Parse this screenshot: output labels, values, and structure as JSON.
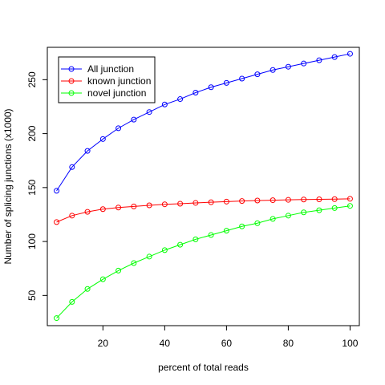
{
  "chart_data": {
    "type": "line",
    "title": "",
    "xlabel": "percent of total reads",
    "ylabel": "Number of splicing junctions (x1000)",
    "xlim": [
      2,
      103
    ],
    "ylim": [
      22,
      280
    ],
    "xticks": [
      20,
      40,
      60,
      80,
      100
    ],
    "yticks": [
      50,
      100,
      150,
      200,
      250
    ],
    "grid": false,
    "legend_position": "top-left",
    "x": [
      5,
      10,
      15,
      20,
      25,
      30,
      35,
      40,
      45,
      50,
      55,
      60,
      65,
      70,
      75,
      80,
      85,
      90,
      95,
      100
    ],
    "series": [
      {
        "name": "All junction",
        "color": "#0000ff",
        "values": [
          147,
          169,
          184,
          195,
          205,
          213,
          220,
          227,
          232,
          238,
          243,
          247,
          251,
          255,
          259,
          262,
          265,
          268,
          271,
          274
        ]
      },
      {
        "name": "known junction",
        "color": "#ff0000",
        "values": [
          118,
          124,
          127.5,
          130,
          131.5,
          132.5,
          133.5,
          134.5,
          135,
          135.8,
          136.4,
          137,
          137.5,
          138,
          138.3,
          138.6,
          138.9,
          139.1,
          139.3,
          139.6
        ]
      },
      {
        "name": "novel junction",
        "color": "#00ff00",
        "values": [
          29,
          44,
          56,
          65,
          73,
          80,
          86,
          92,
          97,
          102,
          106,
          110,
          114,
          117,
          121,
          124,
          127,
          129,
          131,
          133
        ]
      }
    ]
  }
}
